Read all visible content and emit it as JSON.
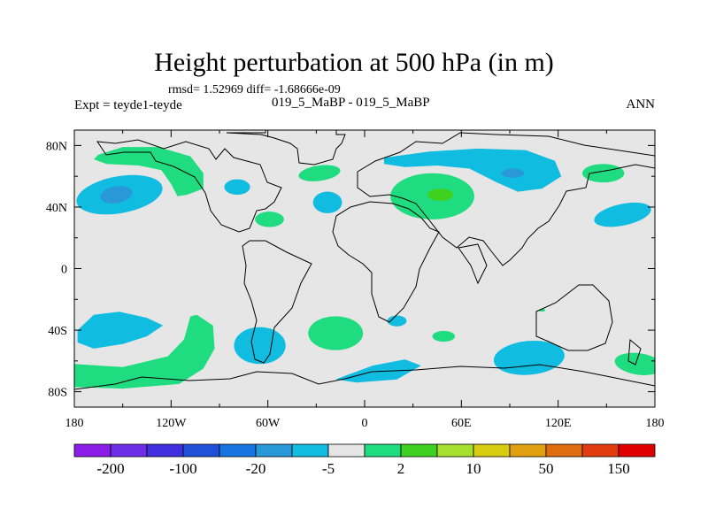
{
  "chart_data": {
    "type": "heatmap",
    "projection": "cylindrical-equidistant",
    "title": "Height perturbation at 500 hPa (in m)",
    "stats_line": "rmsd= 1.52969 diff= -1.68666e-09",
    "left_label": "Expt = teyde1-teyde",
    "center_label": "019_5_MaBP - 019_5_MaBP",
    "right_label": "ANN",
    "xlim": [
      -180,
      180
    ],
    "ylim": [
      -90,
      90
    ],
    "x_ticks": [
      {
        "value": -180,
        "label": "180"
      },
      {
        "value": -120,
        "label": "120W"
      },
      {
        "value": -60,
        "label": "60W"
      },
      {
        "value": 0,
        "label": "0"
      },
      {
        "value": 60,
        "label": "60E"
      },
      {
        "value": 120,
        "label": "120E"
      },
      {
        "value": 180,
        "label": "180"
      }
    ],
    "y_ticks": [
      {
        "value": 80,
        "label": "80N"
      },
      {
        "value": 40,
        "label": "40N"
      },
      {
        "value": 0,
        "label": "0"
      },
      {
        "value": -40,
        "label": "40S"
      },
      {
        "value": -80,
        "label": "80S"
      }
    ],
    "colorbar": {
      "colors": [
        "#8c1ce8",
        "#6e2ee8",
        "#4030e0",
        "#2050d8",
        "#1874e0",
        "#2898d8",
        "#10bce0",
        "#e6e6e6",
        "#20dc80",
        "#40d020",
        "#a8e030",
        "#d8cc10",
        "#e0a010",
        "#e06c10",
        "#e03c10",
        "#e00000"
      ],
      "labels": [
        {
          "boundary": 1,
          "text": "-200"
        },
        {
          "boundary": 3,
          "text": "-100"
        },
        {
          "boundary": 5,
          "text": "-20"
        },
        {
          "boundary": 7,
          "text": "-5"
        },
        {
          "boundary": 9,
          "text": "2"
        },
        {
          "boundary": 11,
          "text": "10"
        },
        {
          "boundary": 13,
          "text": "50"
        },
        {
          "boundary": 15,
          "text": "150"
        }
      ]
    },
    "features": [
      {
        "id": "cyan-n-pacific",
        "color_index": 6,
        "shape": "ellipse",
        "lon": -152,
        "lat": 48,
        "rx": 27,
        "ry": 12,
        "rot": -10
      },
      {
        "id": "blue-n-pacific-core",
        "color_index": 5,
        "shape": "ellipse",
        "lon": -154,
        "lat": 48,
        "rx": 10,
        "ry": 5.5,
        "rot": -10
      },
      {
        "id": "green-arctic-canada",
        "color_index": 8,
        "shape": "polygon",
        "points": [
          [
            -165,
            74
          ],
          [
            -150,
            79
          ],
          [
            -128,
            79
          ],
          [
            -108,
            73
          ],
          [
            -100,
            62
          ],
          [
            -100,
            52
          ],
          [
            -110,
            48
          ],
          [
            -116,
            47
          ],
          [
            -120,
            55
          ],
          [
            -126,
            64
          ],
          [
            -140,
            67
          ],
          [
            -160,
            68
          ],
          [
            -168,
            71
          ]
        ]
      },
      {
        "id": "cyan-n-america",
        "color_index": 6,
        "shape": "ellipse",
        "lon": -79,
        "lat": 53,
        "rx": 8,
        "ry": 5,
        "rot": 0
      },
      {
        "id": "green-greenland",
        "color_index": 8,
        "shape": "ellipse",
        "lon": -28,
        "lat": 62,
        "rx": 13,
        "ry": 5,
        "rot": -8
      },
      {
        "id": "cyan-n-atlantic",
        "color_index": 6,
        "shape": "ellipse",
        "lon": -23,
        "lat": 43,
        "rx": 9,
        "ry": 7,
        "rot": 0
      },
      {
        "id": "green-atlantic-30n",
        "color_index": 8,
        "shape": "ellipse",
        "lon": -59,
        "lat": 32,
        "rx": 9,
        "ry": 5,
        "rot": 0
      },
      {
        "id": "cyan-arctic-asia",
        "color_index": 6,
        "shape": "polygon",
        "points": [
          [
            12,
            72
          ],
          [
            40,
            76
          ],
          [
            70,
            78
          ],
          [
            100,
            77
          ],
          [
            118,
            70
          ],
          [
            122,
            60
          ],
          [
            110,
            52
          ],
          [
            95,
            50
          ],
          [
            82,
            56
          ],
          [
            65,
            65
          ],
          [
            45,
            67
          ],
          [
            25,
            66
          ],
          [
            12,
            68
          ]
        ]
      },
      {
        "id": "blue-siberia-core",
        "color_index": 5,
        "shape": "ellipse",
        "lon": 92,
        "lat": 62,
        "rx": 7,
        "ry": 3,
        "rot": 0
      },
      {
        "id": "green-eurasia",
        "color_index": 8,
        "shape": "ellipse",
        "lon": 42,
        "lat": 47,
        "rx": 26,
        "ry": 15,
        "rot": 0
      },
      {
        "id": "lime-caspian-core",
        "color_index": 9,
        "shape": "ellipse",
        "lon": 47,
        "lat": 48,
        "rx": 8,
        "ry": 4,
        "rot": 0
      },
      {
        "id": "green-ne-asia",
        "color_index": 8,
        "shape": "ellipse",
        "lon": 148,
        "lat": 62,
        "rx": 13,
        "ry": 6,
        "rot": 0
      },
      {
        "id": "cyan-n-pacific-east",
        "color_index": 6,
        "shape": "ellipse",
        "lon": 160,
        "lat": 35,
        "rx": 18,
        "ry": 7,
        "rot": -12
      },
      {
        "id": "cyan-s-pacific",
        "color_index": 6,
        "shape": "polygon",
        "points": [
          [
            -178,
            -40
          ],
          [
            -168,
            -30
          ],
          [
            -152,
            -28
          ],
          [
            -135,
            -32
          ],
          [
            -125,
            -37
          ],
          [
            -135,
            -44
          ],
          [
            -150,
            -49
          ],
          [
            -168,
            -52
          ],
          [
            -178,
            -48
          ]
        ]
      },
      {
        "id": "green-s-pacific-arc",
        "color_index": 8,
        "shape": "polygon",
        "points": [
          [
            -180,
            -62
          ],
          [
            -150,
            -64
          ],
          [
            -122,
            -57
          ],
          [
            -112,
            -46
          ],
          [
            -108,
            -31
          ],
          [
            -104,
            -30
          ],
          [
            -94,
            -37
          ],
          [
            -93,
            -52
          ],
          [
            -100,
            -65
          ],
          [
            -115,
            -75
          ],
          [
            -150,
            -78
          ],
          [
            -180,
            -77
          ]
        ]
      },
      {
        "id": "cyan-s-atlantic-sa",
        "color_index": 6,
        "shape": "ellipse",
        "lon": -65,
        "lat": -50,
        "rx": 16,
        "ry": 12,
        "rot": 0
      },
      {
        "id": "green-s-atlantic",
        "color_index": 8,
        "shape": "ellipse",
        "lon": -18,
        "lat": -42,
        "rx": 17,
        "ry": 11,
        "rot": 0
      },
      {
        "id": "cyan-s-africa",
        "color_index": 6,
        "shape": "ellipse",
        "lon": 20,
        "lat": -34,
        "rx": 6,
        "ry": 3.5,
        "rot": 0
      },
      {
        "id": "green-s-indian",
        "color_index": 8,
        "shape": "ellipse",
        "lon": 49,
        "lat": -44,
        "rx": 7,
        "ry": 3.5,
        "rot": 0
      },
      {
        "id": "cyan-s-ocean",
        "color_index": 6,
        "shape": "polygon",
        "points": [
          [
            -18,
            -72
          ],
          [
            5,
            -63
          ],
          [
            25,
            -59
          ],
          [
            35,
            -63
          ],
          [
            20,
            -72
          ],
          [
            -5,
            -74
          ]
        ]
      },
      {
        "id": "cyan-s-indian",
        "color_index": 6,
        "shape": "ellipse",
        "lon": 102,
        "lat": -58,
        "rx": 22,
        "ry": 11,
        "rot": -5
      },
      {
        "id": "green-nz",
        "color_index": 8,
        "shape": "ellipse",
        "lon": 170,
        "lat": -62,
        "rx": 15,
        "ry": 7,
        "rot": 8
      },
      {
        "id": "green-australia-sliver",
        "color_index": 8,
        "shape": "ellipse",
        "lon": 110,
        "lat": -27,
        "rx": 2,
        "ry": 1,
        "rot": 0
      }
    ]
  }
}
